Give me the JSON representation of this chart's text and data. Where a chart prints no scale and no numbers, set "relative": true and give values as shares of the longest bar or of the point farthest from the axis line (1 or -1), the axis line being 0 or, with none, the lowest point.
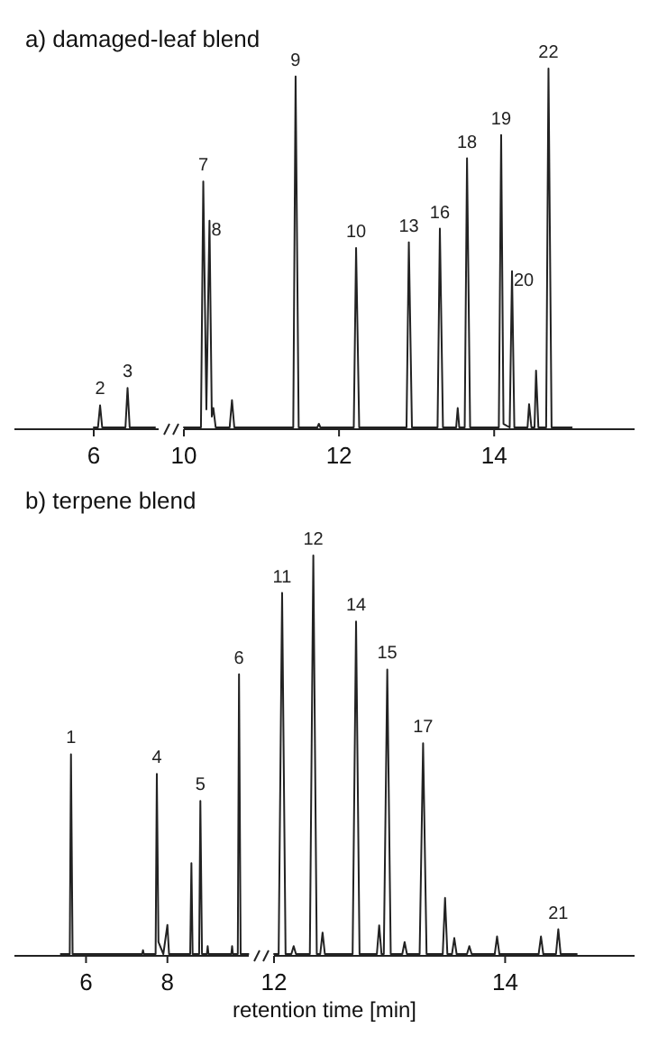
{
  "chart_data": [
    {
      "type": "line",
      "title": "a) damaged-leaf blend",
      "relative": true,
      "categories": [
        null,
        null,
        null,
        null,
        null,
        null,
        null,
        null,
        null,
        null,
        null,
        null,
        null,
        null,
        null,
        null,
        null,
        null,
        null,
        null,
        null,
        null,
        null,
        null,
        null,
        null,
        null,
        null,
        null,
        null
      ],
      "series": [
        {
          "color": "#222222",
          "values": [
            0,
            0,
            0,
            0.56,
            0,
            0,
            0,
            0,
            0,
            0,
            0,
            0,
            0,
            0,
            0,
            0,
            1,
            0,
            0,
            0,
            0,
            0,
            0,
            0,
            0,
            0,
            0,
            0,
            0,
            0
          ]
        }
      ],
      "annotations": [
        "2",
        "3",
        "6"
      ]
    },
    {
      "type": "line",
      "relative": true,
      "xlim": [
        10.0,
        15.81
      ],
      "xticks": [
        10,
        12,
        14
      ],
      "series": [
        {
          "color": "#222222",
          "x": [
            10.0,
            10.22,
            10.25,
            10.29,
            10.33,
            10.36,
            10.38,
            10.41,
            10.59,
            10.62,
            10.65,
            11.41,
            11.44,
            11.48,
            11.72,
            11.74,
            11.76,
            12.19,
            12.22,
            12.26,
            12.87,
            12.9,
            12.94,
            13.27,
            13.3,
            13.34,
            13.51,
            13.53,
            13.55,
            13.62,
            13.65,
            13.69,
            14.06,
            14.09,
            14.12,
            14.2,
            14.23,
            14.26,
            14.43,
            14.45,
            14.48,
            14.52,
            14.54,
            14.57,
            14.67,
            14.7,
            14.74,
            15.0
          ],
          "values": [
            0,
            0,
            0.685,
            0.05,
            0.576,
            0.03,
            0.054,
            0,
            0,
            0.076,
            0,
            0,
            0.978,
            0,
            0,
            0.01,
            0,
            0,
            0.5,
            0,
            0,
            0.516,
            0,
            0,
            0.554,
            0,
            0,
            0.054,
            0,
            0,
            0.75,
            0,
            0,
            0.815,
            0.01,
            0,
            0.435,
            0,
            0,
            0.065,
            0,
            0,
            0.158,
            0,
            0,
            1,
            0,
            0
          ]
        }
      ],
      "annotations": [
        {
          "text": "7",
          "x": 10.25,
          "y": 0.685
        },
        {
          "text": "8",
          "x": 10.33,
          "y": 0.576
        },
        {
          "text": "9",
          "x": 11.44,
          "y": 0.978
        },
        {
          "text": "10",
          "x": 12.22,
          "y": 0.5
        },
        {
          "text": "13",
          "x": 12.9,
          "y": 0.516
        },
        {
          "text": "16",
          "x": 13.3,
          "y": 0.554
        },
        {
          "text": "18",
          "x": 13.65,
          "y": 0.75
        },
        {
          "text": "19",
          "x": 14.09,
          "y": 0.815
        },
        {
          "text": "20",
          "x": 14.23,
          "y": 0.435
        },
        {
          "text": "22",
          "x": 14.7,
          "y": 1
        }
      ]
    },
    {
      "type": "line",
      "title": "b) terpene blend",
      "relative": true,
      "xlim": [
        4.24,
        10.0
      ],
      "xticks": [
        6,
        8
      ],
      "series": [
        {
          "color": "#222222",
          "x": [
            5.38,
            5.6,
            5.63,
            5.67,
            7.38,
            7.4,
            7.42,
            7.71,
            7.74,
            7.78,
            7.9,
            8.0,
            8.04,
            8.56,
            8.59,
            8.62,
            8.78,
            8.81,
            8.85,
            8.97,
            8.99,
            9.01,
            9.57,
            9.59,
            9.61,
            9.73,
            9.76,
            9.8,
            9.99
          ],
          "values": [
            0,
            0,
            0.714,
            0,
            0,
            0.014,
            0,
            0,
            0.644,
            0.043,
            0,
            0.104,
            0,
            0,
            0.325,
            0,
            0,
            0.547,
            0,
            0,
            0.028,
            0,
            0,
            0.028,
            0,
            0,
            1,
            0,
            0
          ]
        }
      ],
      "annotations": [
        {
          "text": "1",
          "x": 5.63,
          "y": 0.714
        },
        {
          "text": "4",
          "x": 7.74,
          "y": 0.644
        },
        {
          "text": "5",
          "x": 8.81,
          "y": 0.547
        },
        {
          "text": "6",
          "x": 9.76,
          "y": 1
        }
      ]
    },
    {
      "type": "line",
      "xlabel": "retention time [min]",
      "relative": true,
      "xlim": [
        12.0,
        15.12
      ],
      "xticks": [
        12,
        14
      ],
      "series": [
        {
          "color": "#222222",
          "x": [
            12.0,
            12.04,
            12.07,
            12.1,
            12.15,
            12.17,
            12.19,
            12.31,
            12.34,
            12.37,
            12.4,
            12.42,
            12.44,
            12.68,
            12.71,
            12.74,
            12.89,
            12.91,
            12.93,
            12.95,
            12.98,
            13.01,
            13.11,
            13.13,
            13.15,
            13.26,
            13.29,
            13.32,
            13.46,
            13.48,
            13.5,
            13.54,
            13.56,
            13.58,
            13.67,
            13.69,
            13.71,
            13.91,
            13.93,
            13.95,
            14.29,
            14.31,
            14.33,
            14.44,
            14.46,
            14.48,
            14.62
          ],
          "values": [
            0,
            0,
            0.906,
            0,
            0,
            0.02,
            0,
            0,
            1,
            0,
            0,
            0.054,
            0,
            0,
            0.834,
            0,
            0,
            0.072,
            0,
            0,
            0.714,
            0,
            0,
            0.03,
            0,
            0,
            0.529,
            0,
            0,
            0.141,
            0,
            0,
            0.04,
            0,
            0,
            0.02,
            0,
            0,
            0.044,
            0,
            0,
            0.044,
            0,
            0,
            0.062,
            0,
            0
          ]
        }
      ],
      "annotations": [
        {
          "text": "11",
          "x": 12.07,
          "y": 0.906
        },
        {
          "text": "12",
          "x": 12.34,
          "y": 1
        },
        {
          "text": "14",
          "x": 12.71,
          "y": 0.834
        },
        {
          "text": "15",
          "x": 12.98,
          "y": 0.714
        },
        {
          "text": "17",
          "x": 13.29,
          "y": 0.529
        },
        {
          "text": "21",
          "x": 14.46,
          "y": 0.062
        }
      ]
    }
  ]
}
